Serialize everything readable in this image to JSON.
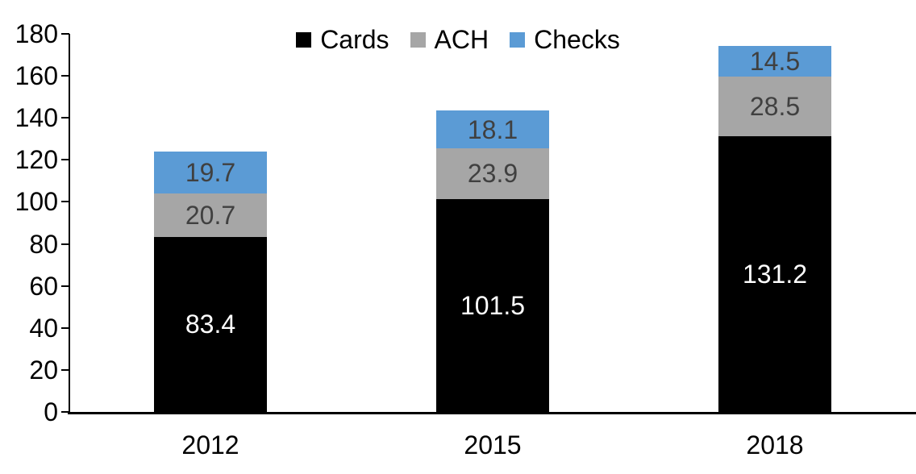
{
  "chart_data": {
    "type": "bar",
    "stacked": true,
    "title": "",
    "xlabel": "",
    "ylabel": "",
    "categories": [
      "2012",
      "2015",
      "2018"
    ],
    "series": [
      {
        "name": "Cards",
        "color": "#000000",
        "label_color": "#ffffff",
        "values": [
          83.4,
          101.5,
          131.2
        ]
      },
      {
        "name": "ACH",
        "color": "#a6a6a6",
        "label_color": "#404040",
        "values": [
          20.7,
          23.9,
          28.5
        ]
      },
      {
        "name": "Checks",
        "color": "#5b9bd5",
        "label_color": "#404040",
        "values": [
          19.7,
          18.1,
          14.5
        ]
      }
    ],
    "totals": [
      123.8,
      143.5,
      174.2
    ],
    "ylim": [
      0,
      180
    ],
    "yticks": [
      0,
      20,
      40,
      60,
      80,
      100,
      120,
      140,
      160,
      180
    ],
    "grid": false,
    "legend_position": "top-center",
    "axis_color": "#000000",
    "background_color": "#ffffff"
  }
}
